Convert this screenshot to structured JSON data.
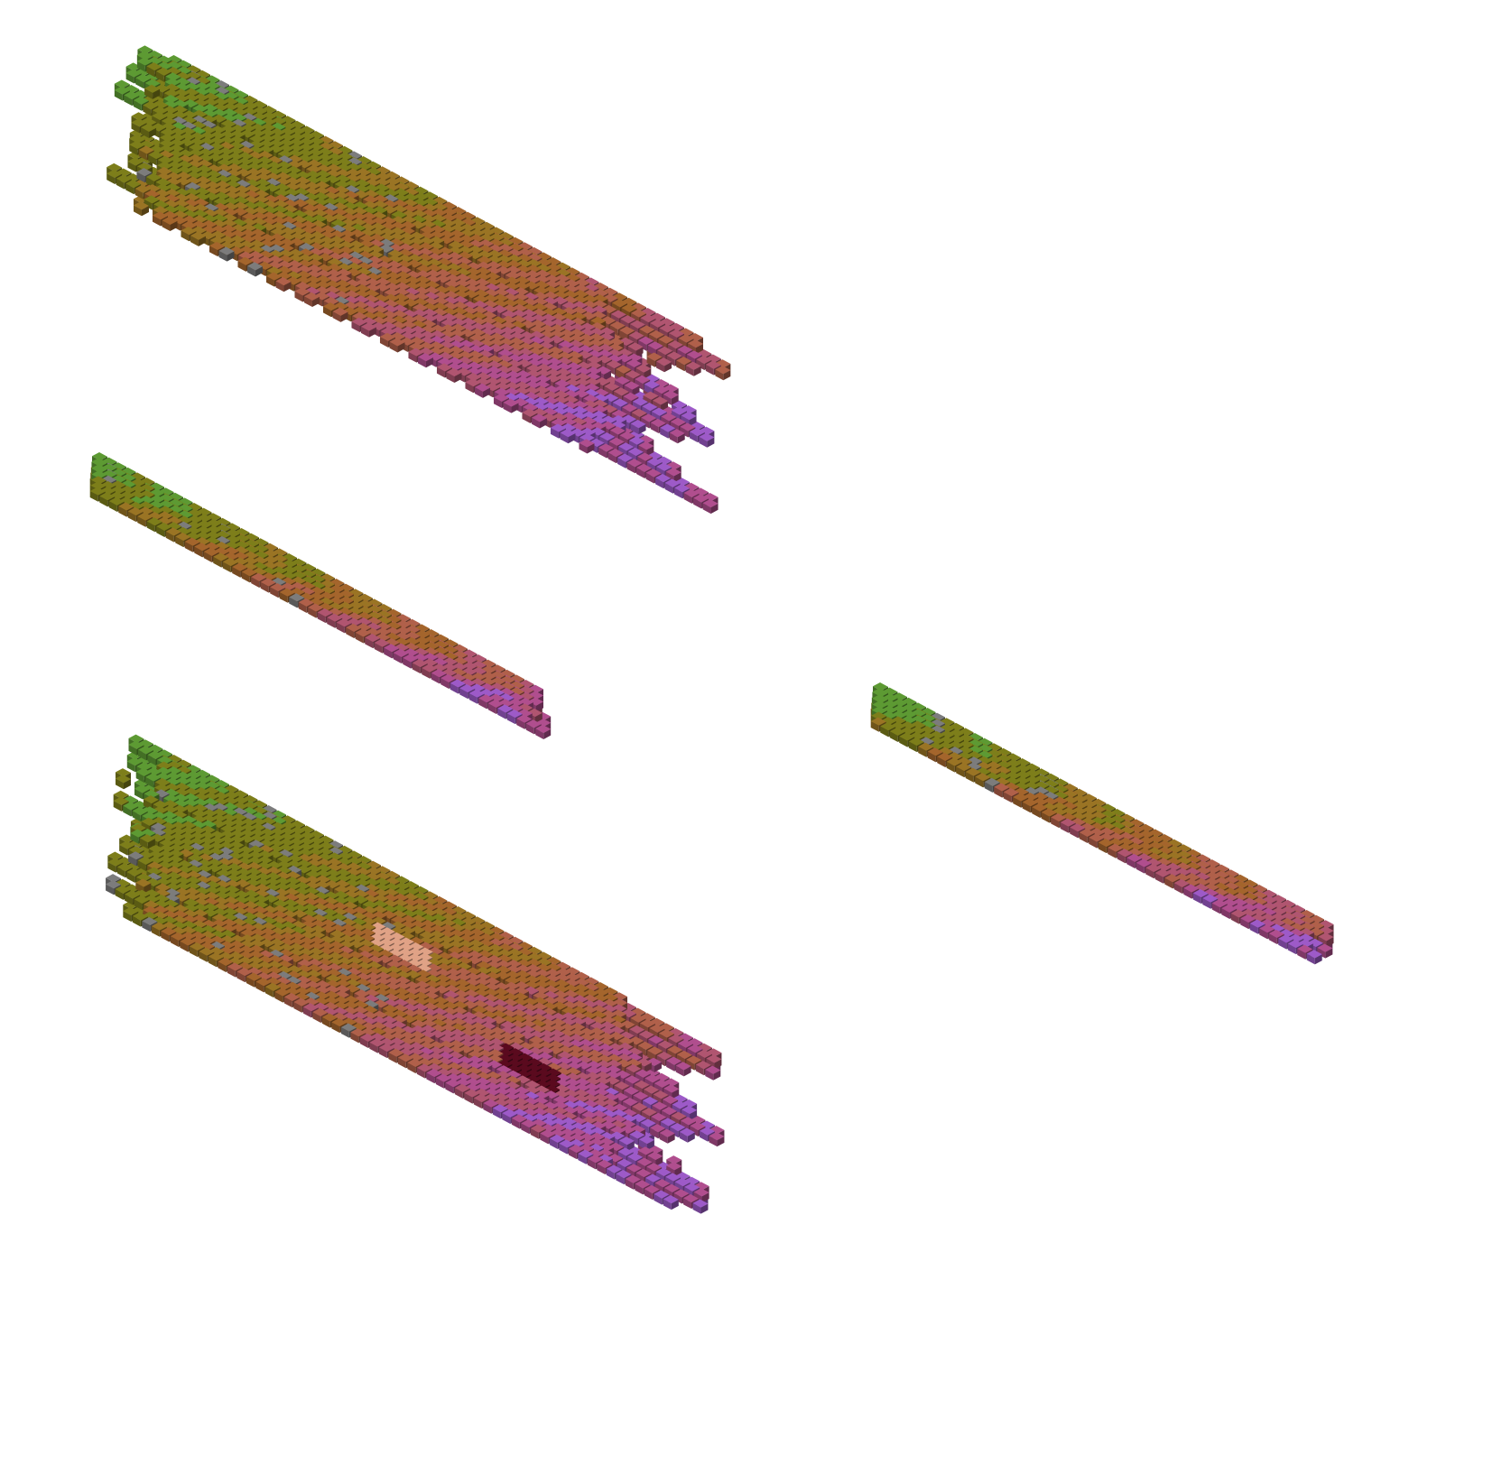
{
  "scene": {
    "description_free": true,
    "palette": {
      "green": "#5d9a33",
      "olive": "#7d7e1a",
      "ochre": "#9a7424",
      "brown": "#a4652c",
      "terracotta": "#b0604a",
      "rose": "#b05570",
      "magenta": "#b04e8e",
      "violet": "#9d5ac8",
      "gray": "#7c7c7c",
      "peach": "#e0a286",
      "maroon": "#5a0a1e",
      "crimson": "#8e2242"
    },
    "groups": [
      {
        "id": "upper-slab",
        "rows": 28,
        "cols": 38,
        "layers": 2
      },
      {
        "id": "middle-strip",
        "rows": 4,
        "cols": 26,
        "layers": 3
      },
      {
        "id": "right-strip",
        "rows": 4,
        "cols": 26,
        "layers": 3
      },
      {
        "id": "lower-slab",
        "rows": 28,
        "cols": 38,
        "layers": 2
      }
    ]
  }
}
